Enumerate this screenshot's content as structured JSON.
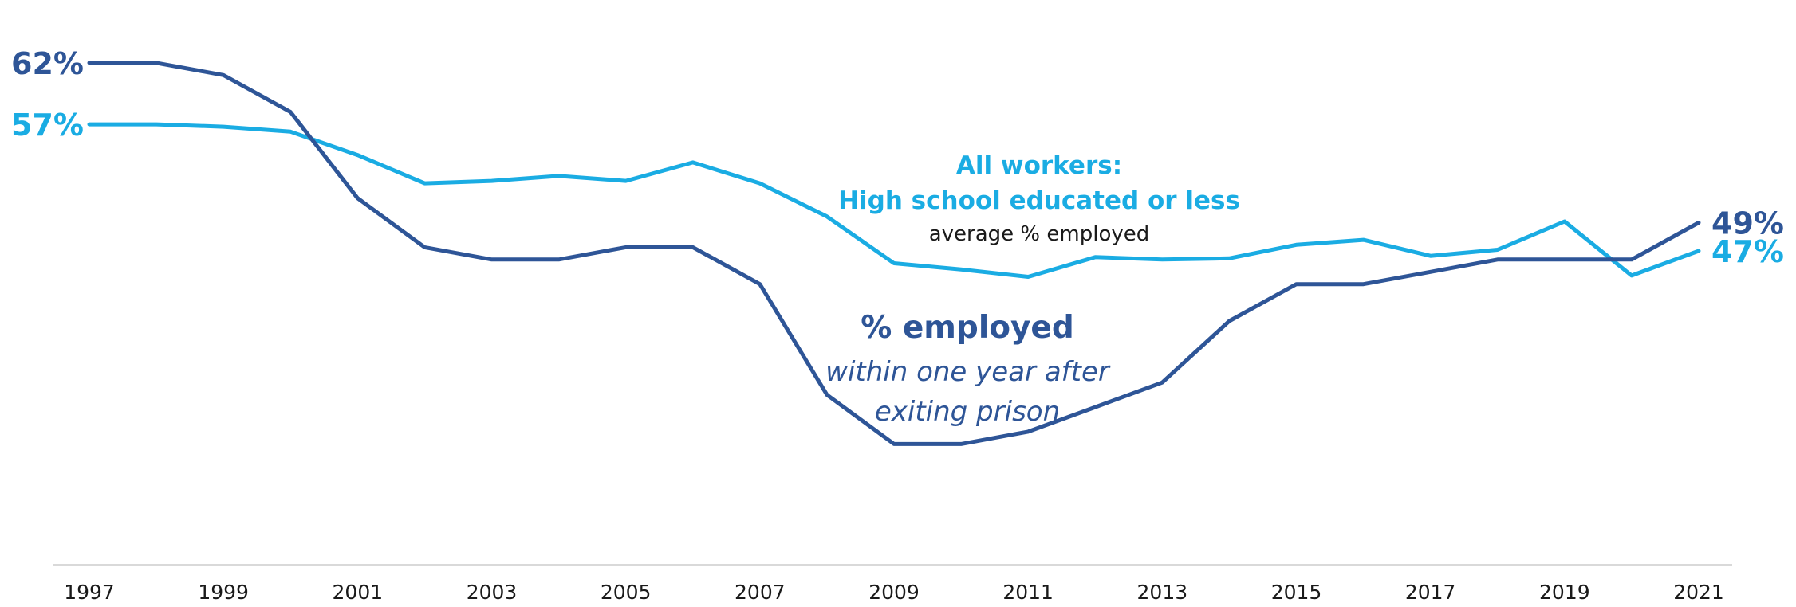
{
  "colors": {
    "prison": "#2E5597",
    "workers": "#1AACE3",
    "axis": "#d9d9d9",
    "text": "#1a1a1a"
  },
  "chart_data": {
    "type": "line",
    "x": [
      1997,
      1998,
      1999,
      2000,
      2001,
      2002,
      2003,
      2004,
      2005,
      2006,
      2007,
      2008,
      2009,
      2010,
      2011,
      2012,
      2013,
      2014,
      2015,
      2016,
      2017,
      2018,
      2019,
      2020,
      2021
    ],
    "x_tick_labels": [
      "1997",
      "1999",
      "2001",
      "2003",
      "2005",
      "2007",
      "2009",
      "2011",
      "2013",
      "2015",
      "2017",
      "2019",
      "2021"
    ],
    "ylim": [
      25,
      64
    ],
    "grid": false,
    "series": [
      {
        "key": "prison",
        "color": "#2E5597",
        "values": [
          62,
          62,
          61,
          58,
          51,
          47,
          46,
          46,
          47,
          47,
          44,
          35,
          31,
          31,
          32,
          34,
          36,
          41,
          44,
          44,
          45,
          46,
          46,
          46,
          49
        ],
        "start_label": "62%",
        "end_label": "49%"
      },
      {
        "key": "workers",
        "color": "#1AACE3",
        "values": [
          57,
          57,
          56.8,
          56.4,
          54.5,
          52.2,
          52.4,
          52.8,
          52.4,
          53.9,
          52.2,
          49.5,
          45.7,
          45.2,
          44.6,
          46.2,
          46.0,
          46.1,
          47.2,
          47.6,
          46.3,
          46.8,
          49.1,
          44.7,
          46.7
        ],
        "start_label": "57%",
        "end_label": "47%"
      }
    ],
    "annotations": {
      "workers_line1": "All workers:",
      "workers_line2": "High school educated or less",
      "workers_line3": "average % employed",
      "prison_line1": "% employed",
      "prison_line2": "within one year after",
      "prison_line3": "exiting prison"
    }
  }
}
